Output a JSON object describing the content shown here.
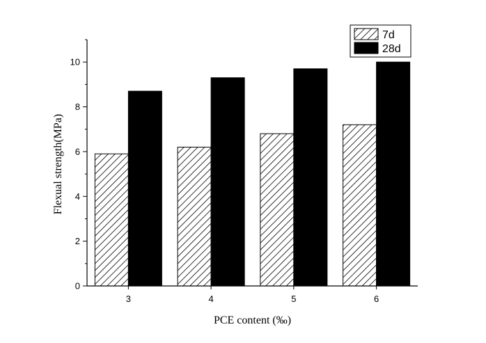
{
  "chart_data": {
    "type": "bar",
    "title": "",
    "xlabel": "PCE content (‰)",
    "ylabel": "Flexual strength(MPa)",
    "categories": [
      "3",
      "4",
      "5",
      "6"
    ],
    "series": [
      {
        "name": "7d",
        "values": [
          5.9,
          6.2,
          6.8,
          7.2
        ],
        "fill": "hatched"
      },
      {
        "name": "28d",
        "values": [
          8.7,
          9.3,
          9.7,
          10.0
        ],
        "fill": "#000000"
      }
    ],
    "ylim": [
      0,
      11
    ],
    "yticks": [
      0,
      2,
      4,
      6,
      8,
      10
    ],
    "grid": false,
    "legend": "top-right"
  }
}
